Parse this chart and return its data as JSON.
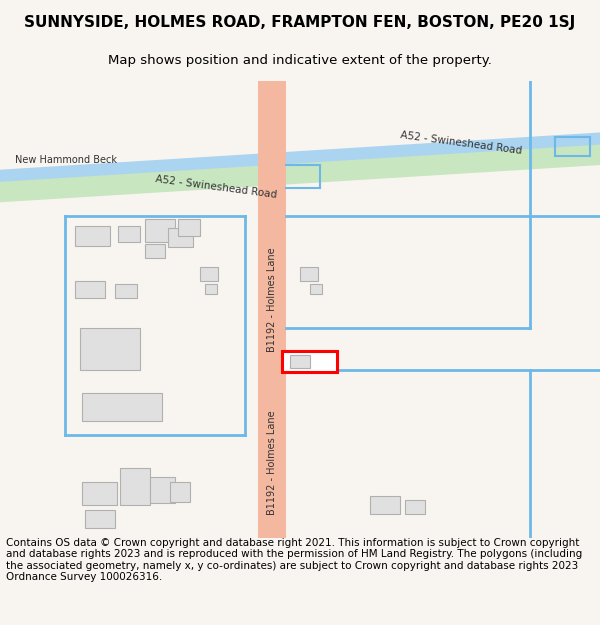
{
  "title": "SUNNYSIDE, HOLMES ROAD, FRAMPTON FEN, BOSTON, PE20 1SJ",
  "subtitle": "Map shows position and indicative extent of the property.",
  "footer": "Contains OS data © Crown copyright and database right 2021. This information is subject to Crown copyright and database rights 2023 and is reproduced with the permission of HM Land Registry. The polygons (including the associated geometry, namely x, y co-ordinates) are subject to Crown copyright and database rights 2023 Ordnance Survey 100026316.",
  "bg_color": "#f8f4f0",
  "map_bg": "#ffffff",
  "road_color_a52": "#c8e6c0",
  "road_color_b1192": "#f4b8a0",
  "canal_color": "#aad4f0",
  "border_color": "#6cb8e8",
  "building_color": "#e0e0e0",
  "building_border": "#b0b0b0",
  "highlight_color": "#ff0000",
  "title_fontsize": 11,
  "subtitle_fontsize": 9.5,
  "footer_fontsize": 7.5
}
